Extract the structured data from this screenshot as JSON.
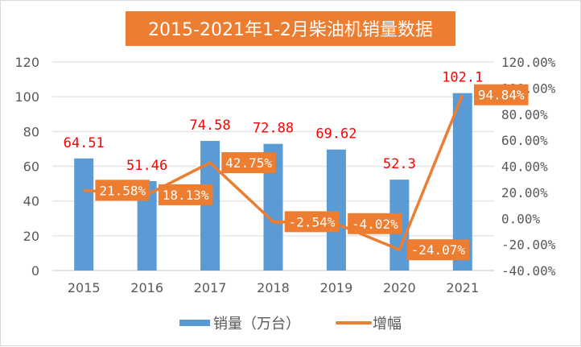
{
  "chart_data": {
    "type": "bar+line",
    "title": "2015-2021年1-2月柴油机销量数据",
    "categories": [
      "2015",
      "2016",
      "2017",
      "2018",
      "2019",
      "2020",
      "2021"
    ],
    "series": [
      {
        "name": "销量（万台）",
        "type": "bar",
        "axis": "left",
        "values": [
          64.51,
          51.46,
          74.58,
          72.88,
          69.62,
          52.3,
          102.1
        ],
        "labels": [
          "64.51",
          "51.46",
          "74.58",
          "72.88",
          "69.62",
          "52.3",
          "102.1"
        ],
        "color": "#5b9bd5"
      },
      {
        "name": "增幅",
        "type": "line",
        "axis": "right",
        "values": [
          21.58,
          18.13,
          42.75,
          -2.54,
          -4.02,
          -24.07,
          94.84
        ],
        "labels": [
          "21.58%",
          "18.13%",
          "42.75%",
          "-2.54%",
          "-4.02%",
          "-24.07%",
          "94.84%"
        ],
        "color": "#ed7d31"
      }
    ],
    "left_axis": {
      "ylim": [
        0,
        120
      ],
      "ticks": [
        "0",
        "20",
        "40",
        "60",
        "80",
        "100",
        "120"
      ]
    },
    "right_axis": {
      "ylim": [
        -40,
        120
      ],
      "ticks": [
        "-40.00%",
        "-20.00%",
        "0.00%",
        "20.00%",
        "40.00%",
        "60.00%",
        "80.00%",
        "100.00%",
        "120.00%"
      ]
    },
    "grid": true,
    "legend": "bottom"
  }
}
